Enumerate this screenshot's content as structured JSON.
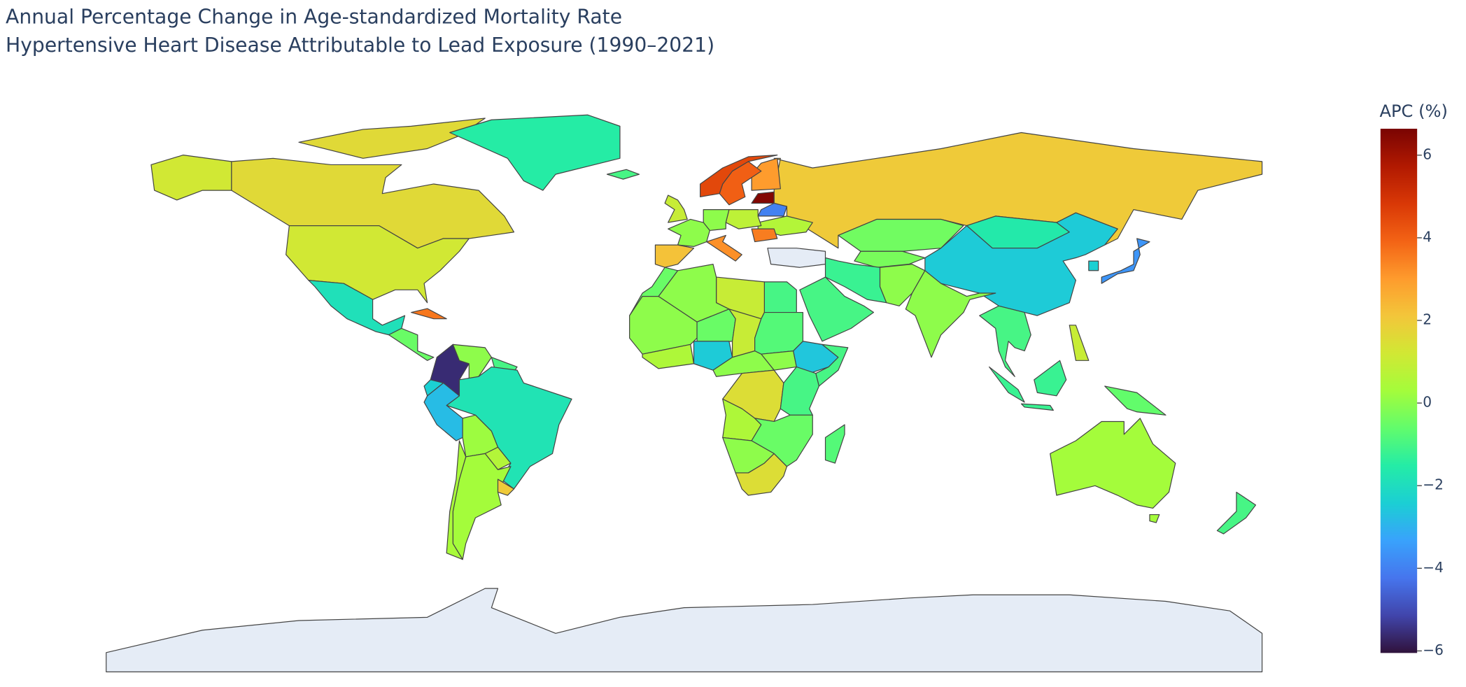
{
  "chart_data": {
    "type": "choropleth",
    "title": "Annual Percentage Change in Age-standardized Mortality Rate",
    "subtitle": "Hypertensive Heart Disease Attributable to Lead Exposure (1990–2021)",
    "colorbar_title": "APC (%)",
    "values": [
      1.6,
      1.2,
      1.2,
      -1.5,
      -1.9,
      -0.5,
      3.6,
      -5.6,
      0.0,
      -1.0,
      -1.8,
      -2.8,
      -2.4,
      0.2,
      0.6,
      0.3,
      2.0,
      0.4,
      2.0,
      3.0,
      4.0,
      4.5,
      6.5,
      -4.0,
      0.6,
      0.8,
      0.0,
      0.0,
      2.2,
      3.2,
      3.5,
      1.0,
      -0.4,
      -0.3,
      -1.2,
      0.0,
      -1.6,
      -2.5,
      0.0,
      -1.0,
      -3.6,
      -2.4,
      -1.2,
      -0.6,
      1.0,
      -1.0,
      -1.0,
      1.0,
      0.0,
      -0.5,
      0.0,
      -0.5,
      1.0,
      -2.5,
      0.5,
      -0.8,
      0.0,
      -2.6,
      -1.0,
      0.0,
      1.5,
      -1.0,
      0.5,
      -0.5,
      0.0,
      1.5,
      -0.8,
      0.3,
      -1.0,
      -1.0
    ],
    "zlim": [
      -6.05,
      6.64
    ],
    "zticks": [
      {
        "value": -6,
        "label": "−6"
      },
      {
        "value": -4,
        "label": "−4"
      },
      {
        "value": -2,
        "label": "−2"
      },
      0,
      2,
      4,
      6
    ],
    "colorscale": [
      "#30123b",
      "#4145ab",
      "#4675ed",
      "#39a2fc",
      "#1bcfd4",
      "#24eca6",
      "#61fc6c",
      "#a4fc3b",
      "#d1e834",
      "#f3c63a",
      "#fe9b2d",
      "#f36315",
      "#d93806",
      "#b11901",
      "#7a0402"
    ],
    "missing_color": "#e5ecf6"
  }
}
